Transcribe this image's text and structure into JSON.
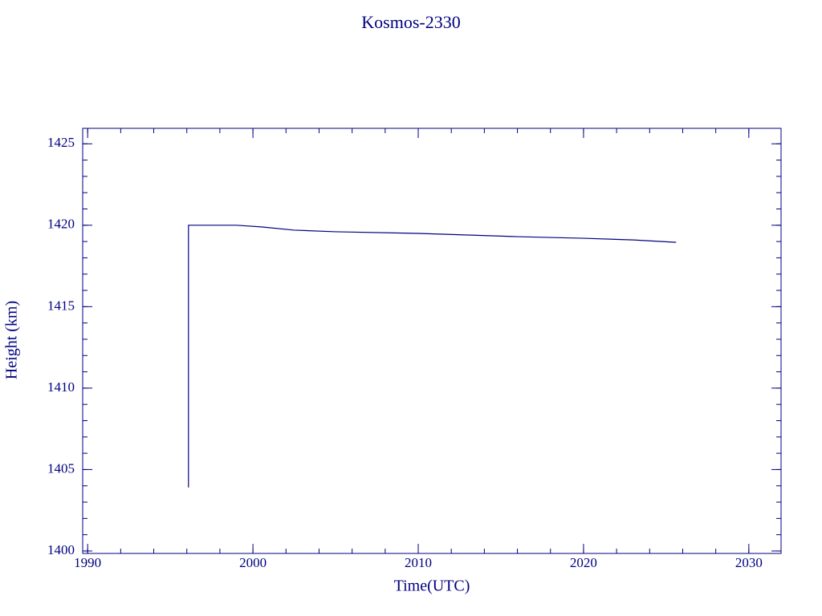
{
  "chart_data": {
    "type": "line",
    "title": "Kosmos-2330",
    "x_label": "Time(UTC)",
    "y_label": "Height (km)",
    "x": [
      1996.1,
      1996.1,
      1999.0,
      2000.5,
      2002.5,
      2005.0,
      2010.0,
      2013.0,
      2016.0,
      2020.0,
      2023.0,
      2025.6
    ],
    "series": [
      {
        "name": "Kosmos-2330",
        "color": "#000080",
        "values": [
          1403.9,
          1420.0,
          1420.0,
          1419.9,
          1419.7,
          1419.6,
          1419.5,
          1419.4,
          1419.3,
          1419.2,
          1419.1,
          1418.95
        ]
      }
    ],
    "xlim": [
      1989.7,
      2031.95
    ],
    "xticks": [
      1990,
      2000,
      2010,
      2020,
      2030
    ],
    "ylim": [
      1399.85,
      1425.95
    ],
    "yticks": [
      1400,
      1405,
      1410,
      1415,
      1420,
      1425
    ],
    "grid": false
  }
}
